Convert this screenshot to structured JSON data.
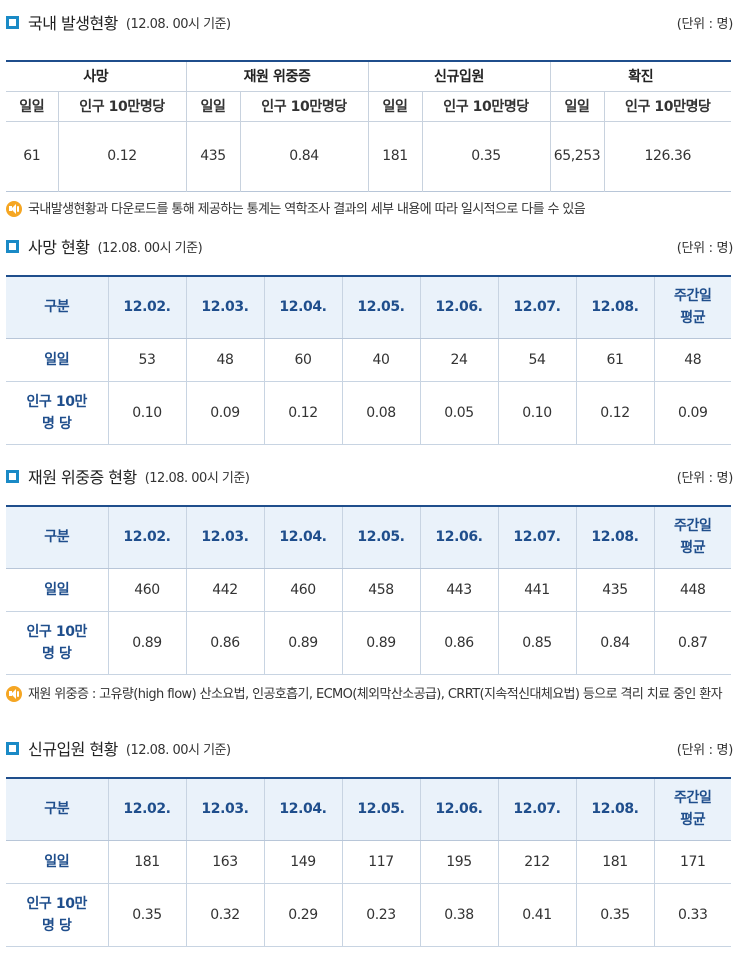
{
  "summary": {
    "title": "국내 발생현황",
    "sub": "(12.08. 00시 기준)",
    "unit": "(단위 : 명)",
    "groups": [
      "사망",
      "재원 위중증",
      "신규입원",
      "확진"
    ],
    "sub_daily": "일일",
    "sub_per": "인구 10만명당",
    "values": [
      "61",
      "0.12",
      "435",
      "0.84",
      "181",
      "0.35",
      "65,253",
      "126.36"
    ],
    "note": "국내발생현황과 다운로드를 통해 제공하는 통계는 역학조사 결과의 세부 내용에 따라 일시적으로 다를 수 있음"
  },
  "header": {
    "gubun": "구분",
    "dates": [
      "12.02.",
      "12.03.",
      "12.04.",
      "12.05.",
      "12.06.",
      "12.07.",
      "12.08."
    ],
    "avg_l1": "주간일",
    "avg_l2": "평균",
    "row_daily": "일일",
    "row_per_l1": "인구 10만",
    "row_per_l2": "명 당"
  },
  "deaths": {
    "title": "사망 현황",
    "sub": "(12.08. 00시 기준)",
    "unit": "(단위 : 명)",
    "daily": [
      "53",
      "48",
      "60",
      "40",
      "24",
      "54",
      "61",
      "48"
    ],
    "per": [
      "0.10",
      "0.09",
      "0.12",
      "0.08",
      "0.05",
      "0.10",
      "0.12",
      "0.09"
    ]
  },
  "critical": {
    "title": "재원 위중증 현황",
    "sub": "(12.08. 00시 기준)",
    "unit": "(단위 : 명)",
    "daily": [
      "460",
      "442",
      "460",
      "458",
      "443",
      "441",
      "435",
      "448"
    ],
    "per": [
      "0.89",
      "0.86",
      "0.89",
      "0.89",
      "0.86",
      "0.85",
      "0.84",
      "0.87"
    ],
    "note": "재원 위중증 : 고유량(high flow) 산소요법, 인공호흡기, ECMO(체외막산소공급), CRRT(지속적신대체요법) 등으로 격리 치료 중인 환자"
  },
  "admission": {
    "title": "신규입원 현황",
    "sub": "(12.08. 00시 기준)",
    "unit": "(단위 : 명)",
    "daily": [
      "181",
      "163",
      "149",
      "117",
      "195",
      "212",
      "181",
      "171"
    ],
    "per": [
      "0.35",
      "0.32",
      "0.29",
      "0.23",
      "0.38",
      "0.41",
      "0.35",
      "0.33"
    ]
  },
  "colors": {
    "accent": "#1a8ac6",
    "navy": "#1f4e8c",
    "header_bg": "#eaf2fa",
    "note_icon": "#f5a623"
  },
  "icons": {
    "section": "square-bullet-icon",
    "note": "speaker-icon"
  }
}
